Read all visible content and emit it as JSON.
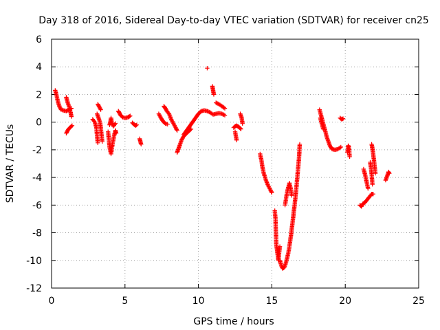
{
  "chart_data": {
    "type": "scatter",
    "title": "Day 318 of 2016, Sidereal Day-to-day VTEC variation (SDTVAR) for receiver cn25",
    "xlabel": "GPS time / hours",
    "ylabel": "SDTVAR / TECUs",
    "xlim": [
      0,
      25
    ],
    "ylim": [
      -12,
      6
    ],
    "xticks": [
      0,
      5,
      10,
      15,
      20,
      25
    ],
    "yticks": [
      -12,
      -10,
      -8,
      -6,
      -4,
      -2,
      0,
      2,
      4,
      6
    ],
    "grid": true,
    "marker": "+",
    "color": "#ff0000",
    "segments": [
      [
        [
          0.25,
          2.3
        ],
        [
          0.35,
          1.9
        ],
        [
          0.45,
          1.4
        ],
        [
          0.55,
          1.1
        ],
        [
          0.65,
          0.9
        ],
        [
          0.8,
          0.85
        ],
        [
          1.0,
          0.8
        ],
        [
          1.2,
          0.9
        ],
        [
          1.35,
          1.0
        ]
      ],
      [
        [
          1.0,
          1.8
        ],
        [
          1.1,
          1.4
        ],
        [
          1.2,
          1.1
        ],
        [
          1.3,
          0.7
        ],
        [
          1.35,
          0.4
        ]
      ],
      [
        [
          1.0,
          -0.8
        ],
        [
          1.1,
          -0.6
        ],
        [
          1.2,
          -0.45
        ],
        [
          1.3,
          -0.35
        ],
        [
          1.4,
          -0.25
        ]
      ],
      [
        [
          2.8,
          0.2
        ],
        [
          2.95,
          0.0
        ],
        [
          3.05,
          -0.4
        ],
        [
          3.1,
          -1.0
        ],
        [
          3.15,
          -1.5
        ]
      ],
      [
        [
          3.1,
          0.6
        ],
        [
          3.2,
          0.3
        ],
        [
          3.3,
          0.0
        ],
        [
          3.35,
          -0.4
        ],
        [
          3.4,
          -0.9
        ],
        [
          3.45,
          -1.4
        ]
      ],
      [
        [
          3.15,
          1.3
        ],
        [
          3.25,
          1.1
        ],
        [
          3.35,
          0.9
        ]
      ],
      [
        [
          3.85,
          -0.7
        ],
        [
          3.9,
          -1.2
        ],
        [
          3.95,
          -1.8
        ],
        [
          4.05,
          -2.3
        ],
        [
          4.15,
          -1.6
        ],
        [
          4.25,
          -1.0
        ],
        [
          4.35,
          -0.6
        ],
        [
          4.4,
          -0.8
        ]
      ],
      [
        [
          3.95,
          -0.2
        ],
        [
          4.0,
          0.0
        ],
        [
          4.05,
          0.3
        ],
        [
          4.1,
          0.0
        ],
        [
          4.2,
          -0.3
        ],
        [
          4.35,
          -0.1
        ]
      ],
      [
        [
          4.55,
          0.8
        ],
        [
          4.6,
          0.7
        ],
        [
          4.7,
          0.5
        ],
        [
          4.85,
          0.35
        ],
        [
          5.0,
          0.3
        ],
        [
          5.2,
          0.35
        ],
        [
          5.35,
          0.45
        ]
      ],
      [
        [
          5.5,
          -0.05
        ],
        [
          5.6,
          -0.15
        ],
        [
          5.7,
          -0.25
        ],
        [
          5.8,
          -0.2
        ]
      ],
      [
        [
          6.0,
          -1.2
        ],
        [
          6.05,
          -1.4
        ],
        [
          6.1,
          -1.6
        ]
      ],
      [
        [
          7.3,
          0.6
        ],
        [
          7.45,
          0.3
        ],
        [
          7.6,
          0.05
        ],
        [
          7.75,
          -0.1
        ],
        [
          7.9,
          -0.15
        ]
      ],
      [
        [
          7.65,
          1.15
        ],
        [
          7.75,
          1.0
        ],
        [
          7.85,
          0.8
        ],
        [
          8.0,
          0.6
        ],
        [
          8.15,
          0.2
        ],
        [
          8.3,
          -0.1
        ],
        [
          8.45,
          -0.4
        ],
        [
          8.55,
          -0.6
        ]
      ],
      [
        [
          8.55,
          -2.2
        ],
        [
          8.65,
          -1.9
        ],
        [
          8.75,
          -1.6
        ],
        [
          8.85,
          -1.3
        ],
        [
          8.95,
          -1.1
        ],
        [
          9.1,
          -0.9
        ],
        [
          9.3,
          -0.7
        ],
        [
          9.5,
          -0.5
        ]
      ],
      [
        [
          9.0,
          -0.9
        ],
        [
          9.2,
          -0.6
        ],
        [
          9.4,
          -0.3
        ],
        [
          9.6,
          0.0
        ],
        [
          9.8,
          0.3
        ],
        [
          10.0,
          0.6
        ],
        [
          10.2,
          0.8
        ],
        [
          10.4,
          0.85
        ],
        [
          10.6,
          0.8
        ],
        [
          10.8,
          0.7
        ],
        [
          11.0,
          0.55
        ],
        [
          11.2,
          0.6
        ],
        [
          11.4,
          0.65
        ],
        [
          11.6,
          0.6
        ],
        [
          11.8,
          0.5
        ]
      ],
      [
        [
          10.6,
          3.9
        ]
      ],
      [
        [
          10.95,
          2.6
        ],
        [
          11.0,
          2.3
        ],
        [
          11.05,
          2.0
        ]
      ],
      [
        [
          11.2,
          1.4
        ],
        [
          11.4,
          1.3
        ],
        [
          11.6,
          1.15
        ],
        [
          11.8,
          1.0
        ]
      ],
      [
        [
          12.4,
          -0.4
        ],
        [
          12.5,
          -0.3
        ],
        [
          12.6,
          -0.25
        ],
        [
          12.75,
          -0.35
        ],
        [
          12.9,
          -0.5
        ]
      ],
      [
        [
          12.5,
          -0.7
        ],
        [
          12.55,
          -1.0
        ],
        [
          12.6,
          -1.3
        ]
      ],
      [
        [
          12.85,
          0.6
        ],
        [
          12.95,
          0.3
        ],
        [
          13.0,
          -0.1
        ]
      ],
      [
        [
          14.2,
          -2.3
        ],
        [
          14.3,
          -2.8
        ],
        [
          14.35,
          -3.2
        ],
        [
          14.45,
          -3.7
        ],
        [
          14.6,
          -4.2
        ],
        [
          14.75,
          -4.6
        ],
        [
          14.9,
          -4.9
        ],
        [
          15.0,
          -5.1
        ]
      ],
      [
        [
          15.2,
          -6.4
        ],
        [
          15.25,
          -7.0
        ],
        [
          15.3,
          -8.8
        ],
        [
          15.35,
          -9.2
        ],
        [
          15.4,
          -9.6
        ],
        [
          15.45,
          -10.0
        ],
        [
          15.5,
          -9.4
        ],
        [
          15.55,
          -9.0
        ]
      ],
      [
        [
          15.55,
          -10.0
        ],
        [
          15.65,
          -10.4
        ],
        [
          15.75,
          -10.6
        ],
        [
          15.85,
          -10.5
        ],
        [
          15.95,
          -10.2
        ],
        [
          16.05,
          -9.8
        ],
        [
          16.15,
          -9.3
        ],
        [
          16.25,
          -8.6
        ],
        [
          16.35,
          -7.8
        ],
        [
          16.45,
          -6.9
        ],
        [
          16.55,
          -6.0
        ],
        [
          16.65,
          -5.0
        ],
        [
          16.75,
          -3.8
        ],
        [
          16.85,
          -2.6
        ],
        [
          16.9,
          -1.6
        ]
      ],
      [
        [
          15.9,
          -6.0
        ],
        [
          16.0,
          -5.3
        ],
        [
          16.1,
          -4.8
        ],
        [
          16.2,
          -4.4
        ],
        [
          16.3,
          -4.9
        ],
        [
          16.35,
          -5.3
        ]
      ],
      [
        [
          18.25,
          0.9
        ],
        [
          18.35,
          0.5
        ],
        [
          18.45,
          0.1
        ],
        [
          18.55,
          -0.3
        ],
        [
          18.65,
          -0.7
        ],
        [
          18.75,
          -1.1
        ],
        [
          18.85,
          -1.4
        ],
        [
          18.95,
          -1.7
        ],
        [
          19.1,
          -1.95
        ],
        [
          19.3,
          -2.0
        ],
        [
          19.5,
          -1.95
        ],
        [
          19.7,
          -1.8
        ]
      ],
      [
        [
          18.3,
          0.3
        ],
        [
          18.4,
          -0.1
        ],
        [
          18.5,
          -0.5
        ]
      ],
      [
        [
          19.65,
          0.3
        ],
        [
          19.75,
          0.2
        ],
        [
          19.85,
          0.25
        ]
      ],
      [
        [
          20.15,
          -2.2
        ],
        [
          20.2,
          -1.7
        ],
        [
          20.25,
          -1.8
        ],
        [
          20.3,
          -2.5
        ]
      ],
      [
        [
          21.0,
          -6.0
        ],
        [
          21.1,
          -6.1
        ],
        [
          21.2,
          -5.9
        ],
        [
          21.35,
          -5.8
        ],
        [
          21.5,
          -5.6
        ],
        [
          21.65,
          -5.4
        ],
        [
          21.8,
          -5.2
        ],
        [
          21.9,
          -5.2
        ]
      ],
      [
        [
          21.25,
          -3.4
        ],
        [
          21.35,
          -3.8
        ],
        [
          21.45,
          -4.3
        ],
        [
          21.55,
          -4.8
        ]
      ],
      [
        [
          21.7,
          -2.9
        ],
        [
          21.75,
          -3.3
        ],
        [
          21.8,
          -3.8
        ],
        [
          21.85,
          -4.5
        ]
      ],
      [
        [
          21.8,
          -1.6
        ],
        [
          21.85,
          -1.9
        ],
        [
          21.9,
          -2.3
        ],
        [
          21.95,
          -2.7
        ],
        [
          22.0,
          -3.2
        ],
        [
          22.05,
          -3.7
        ]
      ],
      [
        [
          22.75,
          -4.2
        ],
        [
          22.85,
          -3.9
        ],
        [
          22.95,
          -3.6
        ],
        [
          23.0,
          -3.7
        ]
      ]
    ]
  }
}
